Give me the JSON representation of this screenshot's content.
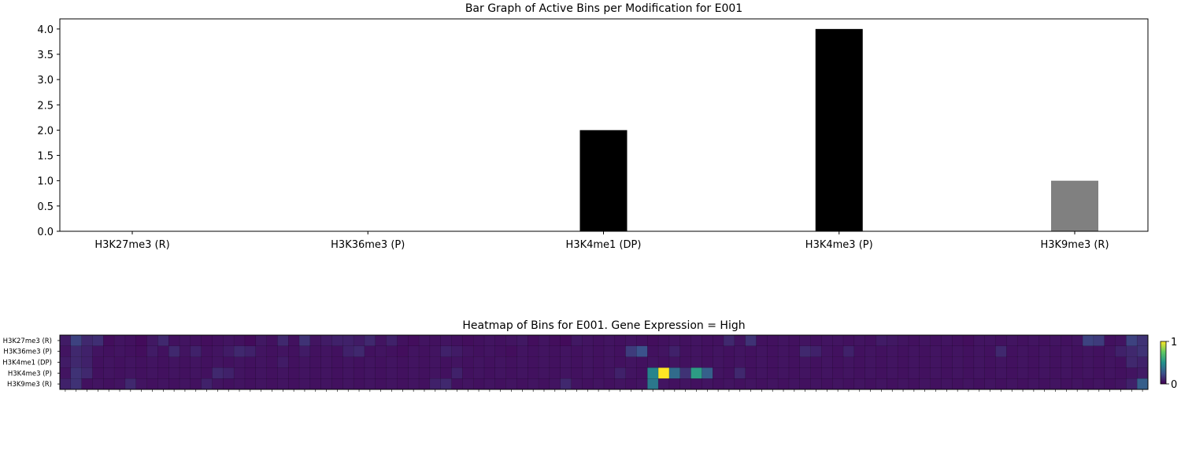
{
  "chart_data": [
    {
      "type": "bar",
      "title": "Bar Graph of Active Bins per Modification for E001",
      "xlabel": "",
      "ylabel": "",
      "categories": [
        "H3K27me3 (R)",
        "H3K36me3 (P)",
        "H3K4me1 (DP)",
        "H3K4me3 (P)",
        "H3K9me3 (R)"
      ],
      "values": [
        0,
        0,
        2,
        4,
        1
      ],
      "colors": [
        "#000000",
        "#000000",
        "#000000",
        "#000000",
        "#808080"
      ],
      "ylim": [
        0,
        4.2
      ],
      "yticks": [
        "0.0",
        "0.5",
        "1.0",
        "1.5",
        "2.0",
        "2.5",
        "3.0",
        "3.5",
        "4.0"
      ],
      "grid": false
    },
    {
      "type": "heatmap",
      "title": "Heatmap of Bins for E001. Gene Expression = High",
      "colormap": "viridis",
      "rows": [
        "H3K27me3 (R)",
        "H3K36me3 (P)",
        "H3K4me1 (DP)",
        "H3K4me3 (P)",
        "H3K9me3 (R)"
      ],
      "n_columns": 100,
      "colorbar_ticks": [
        "1",
        "0"
      ],
      "vmin": 0,
      "vmax": 1,
      "values": [
        [
          0.08,
          0.2,
          0.12,
          0.14,
          0.04,
          0.06,
          0.05,
          0.03,
          0.07,
          0.12,
          0.05,
          0.06,
          0.05,
          0.04,
          0.05,
          0.06,
          0.05,
          0.03,
          0.07,
          0.05,
          0.12,
          0.05,
          0.15,
          0.06,
          0.08,
          0.1,
          0.1,
          0.08,
          0.12,
          0.06,
          0.1,
          0.05,
          0.04,
          0.06,
          0.05,
          0.06,
          0.05,
          0.04,
          0.05,
          0.06,
          0.05,
          0.06,
          0.07,
          0.04,
          0.06,
          0.04,
          0.03,
          0.07,
          0.06,
          0.05,
          0.06,
          0.05,
          0.06,
          0.05,
          0.04,
          0.05,
          0.06,
          0.05,
          0.06,
          0.05,
          0.05,
          0.12,
          0.06,
          0.15,
          0.05,
          0.05,
          0.06,
          0.05,
          0.06,
          0.05,
          0.06,
          0.06,
          0.05,
          0.06,
          0.05,
          0.08,
          0.07,
          0.06,
          0.05,
          0.06,
          0.05,
          0.06,
          0.05,
          0.04,
          0.06,
          0.06,
          0.05,
          0.06,
          0.05,
          0.06,
          0.05,
          0.06,
          0.05,
          0.06,
          0.2,
          0.18,
          0.05,
          0.06,
          0.2,
          0.15
        ],
        [
          0.06,
          0.12,
          0.1,
          0.06,
          0.05,
          0.06,
          0.05,
          0.04,
          0.08,
          0.05,
          0.12,
          0.06,
          0.1,
          0.05,
          0.06,
          0.08,
          0.12,
          0.1,
          0.06,
          0.05,
          0.06,
          0.05,
          0.08,
          0.05,
          0.06,
          0.05,
          0.1,
          0.12,
          0.05,
          0.06,
          0.05,
          0.04,
          0.06,
          0.05,
          0.06,
          0.1,
          0.08,
          0.06,
          0.05,
          0.06,
          0.05,
          0.04,
          0.06,
          0.05,
          0.06,
          0.05,
          0.06,
          0.05,
          0.06,
          0.05,
          0.06,
          0.05,
          0.18,
          0.25,
          0.05,
          0.06,
          0.1,
          0.05,
          0.06,
          0.05,
          0.06,
          0.05,
          0.06,
          0.05,
          0.06,
          0.05,
          0.06,
          0.05,
          0.12,
          0.1,
          0.06,
          0.05,
          0.1,
          0.05,
          0.06,
          0.05,
          0.06,
          0.05,
          0.06,
          0.05,
          0.06,
          0.05,
          0.06,
          0.05,
          0.06,
          0.05,
          0.12,
          0.05,
          0.06,
          0.05,
          0.06,
          0.05,
          0.06,
          0.05,
          0.06,
          0.05,
          0.06,
          0.1,
          0.12,
          0.15
        ],
        [
          0.08,
          0.12,
          0.1,
          0.05,
          0.06,
          0.05,
          0.06,
          0.05,
          0.06,
          0.05,
          0.06,
          0.05,
          0.06,
          0.05,
          0.06,
          0.05,
          0.06,
          0.05,
          0.06,
          0.05,
          0.08,
          0.05,
          0.06,
          0.05,
          0.06,
          0.05,
          0.06,
          0.05,
          0.06,
          0.05,
          0.06,
          0.05,
          0.06,
          0.05,
          0.06,
          0.05,
          0.06,
          0.05,
          0.06,
          0.05,
          0.06,
          0.05,
          0.06,
          0.05,
          0.06,
          0.05,
          0.06,
          0.05,
          0.06,
          0.05,
          0.06,
          0.05,
          0.06,
          0.05,
          0.06,
          0.05,
          0.06,
          0.05,
          0.06,
          0.05,
          0.06,
          0.05,
          0.06,
          0.05,
          0.06,
          0.05,
          0.06,
          0.05,
          0.06,
          0.05,
          0.06,
          0.05,
          0.06,
          0.05,
          0.06,
          0.05,
          0.06,
          0.05,
          0.06,
          0.05,
          0.06,
          0.05,
          0.06,
          0.05,
          0.06,
          0.05,
          0.06,
          0.05,
          0.06,
          0.05,
          0.06,
          0.05,
          0.06,
          0.05,
          0.06,
          0.05,
          0.06,
          0.05,
          0.12,
          0.1
        ],
        [
          0.06,
          0.15,
          0.12,
          0.05,
          0.06,
          0.05,
          0.06,
          0.05,
          0.06,
          0.05,
          0.06,
          0.05,
          0.06,
          0.05,
          0.12,
          0.1,
          0.06,
          0.05,
          0.06,
          0.05,
          0.06,
          0.05,
          0.06,
          0.05,
          0.06,
          0.05,
          0.06,
          0.05,
          0.06,
          0.05,
          0.06,
          0.05,
          0.06,
          0.05,
          0.06,
          0.05,
          0.1,
          0.05,
          0.06,
          0.05,
          0.06,
          0.05,
          0.06,
          0.05,
          0.06,
          0.05,
          0.06,
          0.05,
          0.06,
          0.05,
          0.06,
          0.1,
          0.06,
          0.05,
          0.45,
          1.0,
          0.35,
          0.15,
          0.55,
          0.3,
          0.06,
          0.05,
          0.12,
          0.05,
          0.06,
          0.05,
          0.06,
          0.05,
          0.06,
          0.05,
          0.06,
          0.05,
          0.06,
          0.05,
          0.06,
          0.05,
          0.06,
          0.05,
          0.06,
          0.05,
          0.06,
          0.05,
          0.06,
          0.05,
          0.06,
          0.05,
          0.06,
          0.05,
          0.06,
          0.05,
          0.06,
          0.05,
          0.06,
          0.05,
          0.06,
          0.05,
          0.06,
          0.05,
          0.06,
          0.08
        ],
        [
          0.1,
          0.15,
          0.05,
          0.06,
          0.05,
          0.06,
          0.12,
          0.06,
          0.05,
          0.06,
          0.05,
          0.06,
          0.05,
          0.1,
          0.06,
          0.05,
          0.06,
          0.05,
          0.06,
          0.05,
          0.06,
          0.05,
          0.06,
          0.05,
          0.06,
          0.05,
          0.06,
          0.05,
          0.06,
          0.05,
          0.06,
          0.05,
          0.06,
          0.05,
          0.1,
          0.12,
          0.05,
          0.06,
          0.05,
          0.06,
          0.05,
          0.06,
          0.05,
          0.06,
          0.05,
          0.06,
          0.12,
          0.06,
          0.05,
          0.06,
          0.05,
          0.06,
          0.05,
          0.06,
          0.4,
          0.06,
          0.05,
          0.06,
          0.05,
          0.06,
          0.05,
          0.06,
          0.05,
          0.06,
          0.05,
          0.06,
          0.05,
          0.06,
          0.05,
          0.06,
          0.05,
          0.06,
          0.05,
          0.06,
          0.05,
          0.06,
          0.05,
          0.06,
          0.05,
          0.06,
          0.05,
          0.06,
          0.05,
          0.06,
          0.05,
          0.06,
          0.05,
          0.06,
          0.05,
          0.06,
          0.05,
          0.06,
          0.05,
          0.06,
          0.05,
          0.06,
          0.05,
          0.06,
          0.1,
          0.3
        ]
      ]
    }
  ]
}
